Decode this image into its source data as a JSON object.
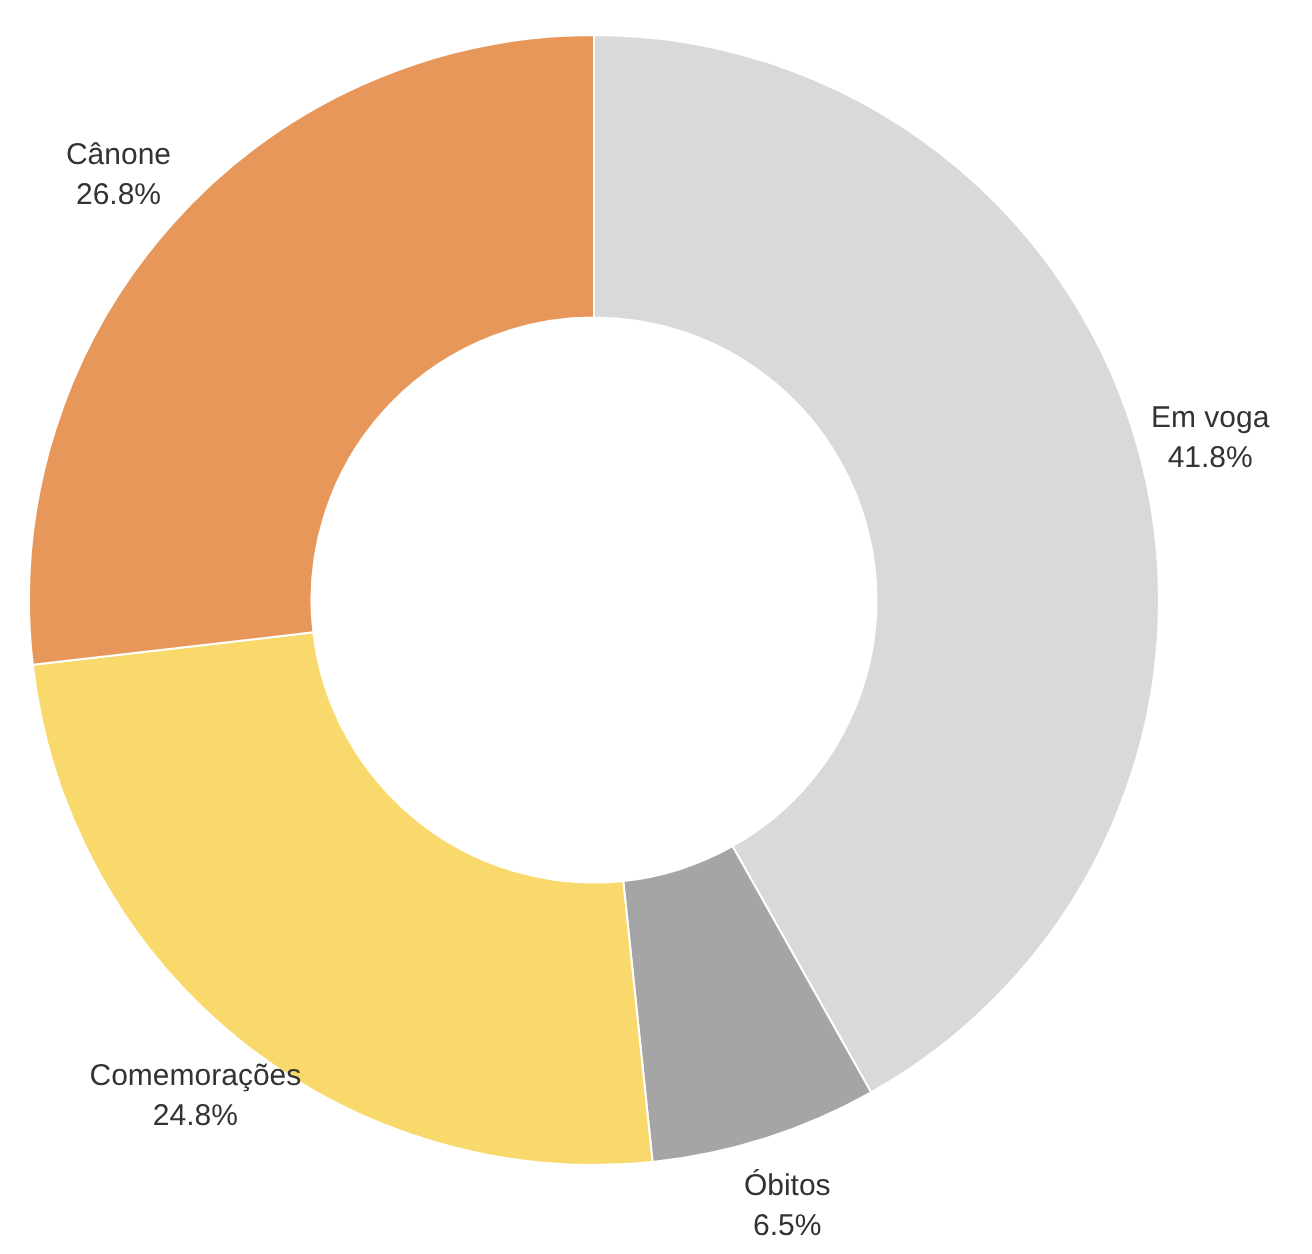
{
  "chart_data": {
    "type": "donut",
    "categories": [
      "Em voga",
      "Óbitos",
      "Comemorações",
      "Cânone"
    ],
    "values": [
      41.8,
      6.5,
      24.8,
      26.8
    ],
    "colors": [
      "#d9d9d9",
      "#a5a5a5",
      "#f9d96b",
      "#e8975a"
    ],
    "value_labels": [
      "41.8%",
      "6.5%",
      "24.8%",
      "26.8%"
    ],
    "legend": false
  }
}
